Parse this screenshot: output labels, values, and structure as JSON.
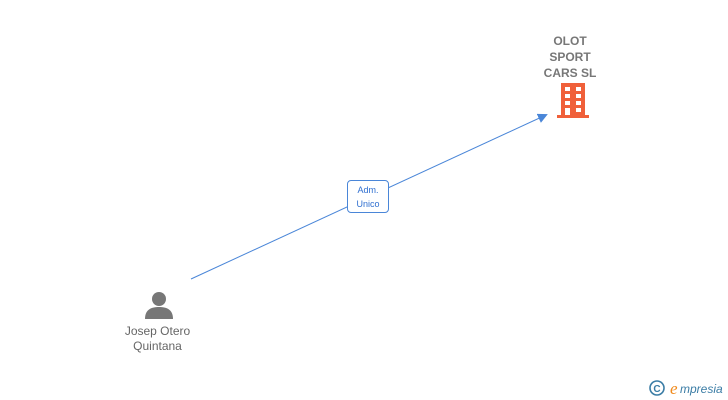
{
  "company": {
    "name": "OLOT\nSPORT\nCARS SL",
    "icon": "building-icon",
    "color": "#f0603a"
  },
  "person": {
    "name": "Josep Otero\nQuintana",
    "icon": "person-icon",
    "color": "#777777"
  },
  "relation": {
    "label": "Adm.\nUnico",
    "color": "#4a86d8"
  },
  "watermark": {
    "text": "© empresia",
    "color": "#f08a1c"
  }
}
